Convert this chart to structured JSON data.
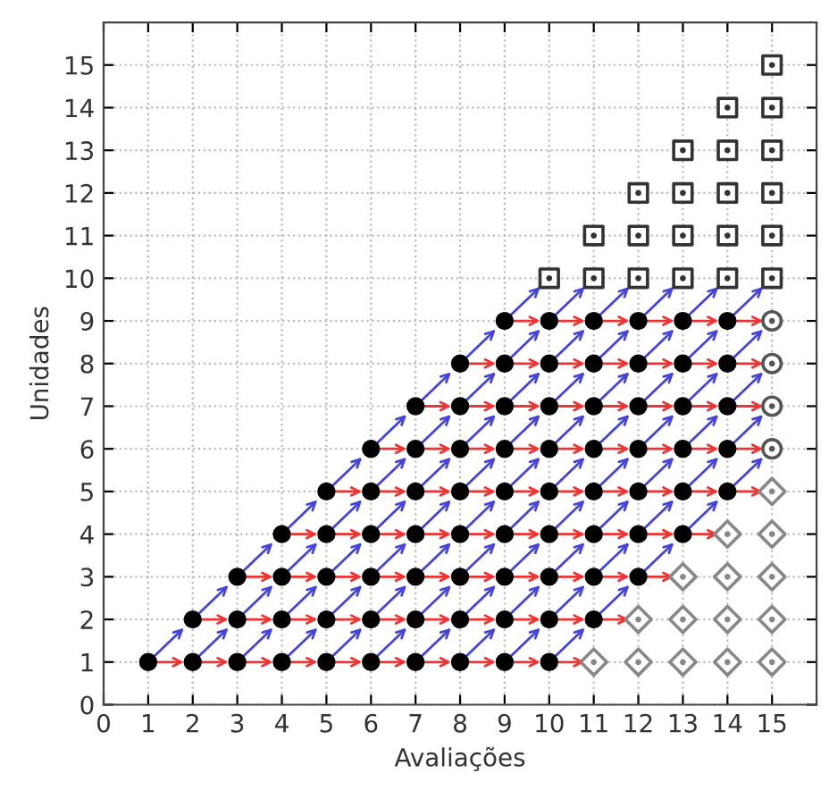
{
  "chart_data": {
    "type": "scatter",
    "xlabel": "Avaliações",
    "ylabel": "Unidades",
    "xlim": [
      0,
      16
    ],
    "ylim": [
      0,
      16
    ],
    "xticks": [
      0,
      1,
      2,
      3,
      4,
      5,
      6,
      7,
      8,
      9,
      10,
      11,
      12,
      13,
      14,
      15
    ],
    "yticks": [
      0,
      1,
      2,
      3,
      4,
      5,
      6,
      7,
      8,
      9,
      10,
      11,
      12,
      13,
      14,
      15
    ],
    "grid": true,
    "series": [
      {
        "color": "#000000",
        "x": [
          1,
          2,
          3,
          4,
          5,
          6,
          7,
          8,
          9,
          10,
          2,
          3,
          4,
          5,
          6,
          7,
          8,
          9,
          10,
          11,
          3,
          4,
          5,
          6,
          7,
          8,
          9,
          10,
          11,
          12,
          4,
          5,
          6,
          7,
          8,
          9,
          10,
          11,
          12,
          13,
          5,
          6,
          7,
          8,
          9,
          10,
          11,
          12,
          13,
          14,
          6,
          7,
          8,
          9,
          10,
          11,
          12,
          13,
          14,
          7,
          8,
          9,
          10,
          11,
          12,
          13,
          14,
          8,
          9,
          10,
          11,
          12,
          13,
          14,
          9,
          10,
          11,
          12,
          13,
          14
        ],
        "values": [
          1,
          1,
          1,
          1,
          1,
          1,
          1,
          1,
          1,
          1,
          2,
          2,
          2,
          2,
          2,
          2,
          2,
          2,
          2,
          2,
          3,
          3,
          3,
          3,
          3,
          3,
          3,
          3,
          3,
          3,
          4,
          4,
          4,
          4,
          4,
          4,
          4,
          4,
          4,
          4,
          5,
          5,
          5,
          5,
          5,
          5,
          5,
          5,
          5,
          5,
          6,
          6,
          6,
          6,
          6,
          6,
          6,
          6,
          6,
          7,
          7,
          7,
          7,
          7,
          7,
          7,
          7,
          8,
          8,
          8,
          8,
          8,
          8,
          8,
          9,
          9,
          9,
          9,
          9,
          9
        ]
      },
      {
        "color": "#888888",
        "marker": "diamond",
        "x": [
          11,
          12,
          13,
          14,
          15,
          12,
          13,
          14,
          15,
          13,
          14,
          15,
          14,
          15,
          15
        ],
        "values": [
          1,
          1,
          1,
          1,
          1,
          2,
          2,
          2,
          2,
          3,
          3,
          3,
          4,
          4,
          5
        ]
      },
      {
        "color": "#555555",
        "marker": "circle",
        "x": [
          15,
          15,
          15,
          15
        ],
        "values": [
          6,
          7,
          8,
          9
        ]
      },
      {
        "color": "#333333",
        "marker": "square",
        "x": [
          10,
          11,
          12,
          13,
          14,
          15,
          11,
          12,
          13,
          14,
          15,
          12,
          13,
          14,
          15,
          13,
          14,
          15,
          14,
          15,
          15
        ],
        "values": [
          10,
          10,
          10,
          10,
          10,
          10,
          11,
          11,
          11,
          11,
          11,
          12,
          12,
          12,
          12,
          13,
          13,
          13,
          14,
          14,
          15
        ]
      }
    ]
  }
}
